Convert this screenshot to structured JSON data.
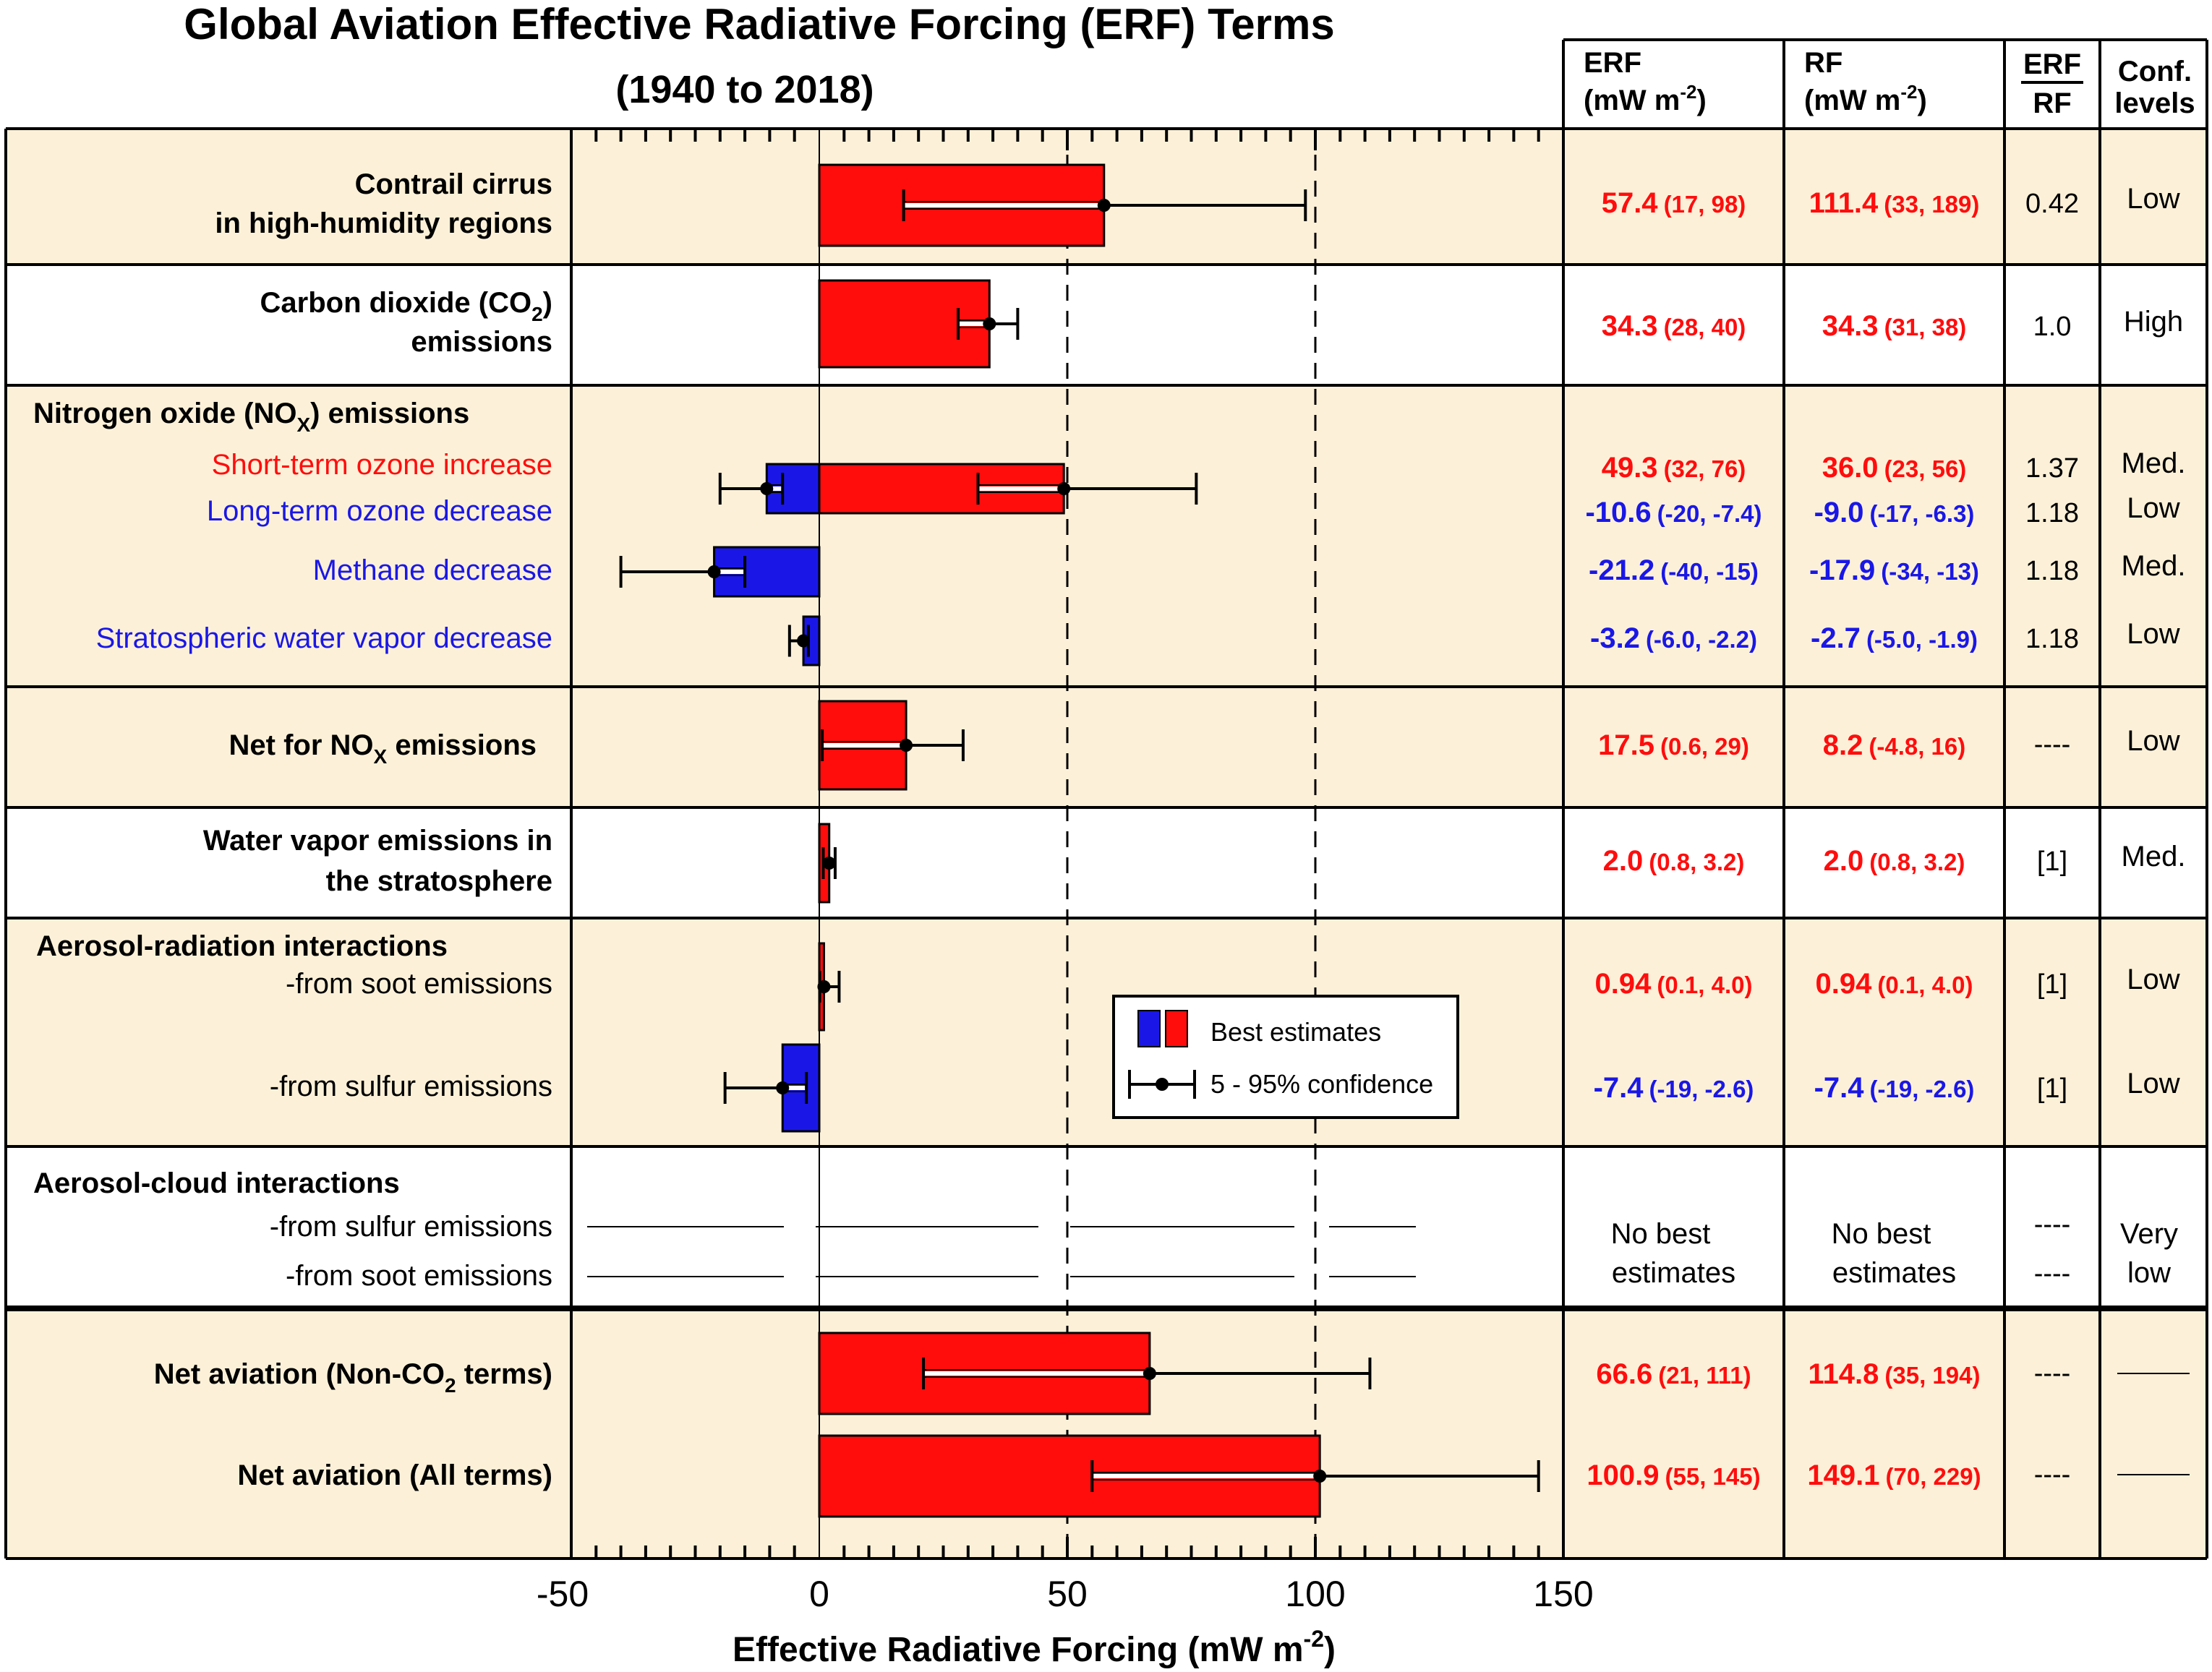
{
  "chart_data": {
    "type": "bar",
    "title": "Global Aviation Effective Radiative Forcing (ERF) Terms",
    "subtitle": "(1940 to 2018)",
    "xlabel": "Effective Radiative Forcing  (mW m",
    "xlabel_sup": "-2",
    "xlabel_close": ")",
    "xlim": [
      -50,
      150
    ],
    "x_ticks": [
      "-50",
      "0",
      "50",
      "100",
      "150"
    ],
    "dashed_reference_lines": [
      50,
      100
    ],
    "colors": {
      "positive": "#ff0d0d",
      "negative": "#1a17e6",
      "panel_shade": "#fcf1d8"
    },
    "table_headers": {
      "erf": "ERF",
      "erf_unit": "(mW m",
      "rf": "RF",
      "rf_unit": "(mW m",
      "unit_sup": "-2",
      "unit_close": ")",
      "ratio_top": "ERF",
      "ratio_bottom": "RF",
      "conf_top": "Conf.",
      "conf_bottom": "levels"
    },
    "legend": {
      "bars_label": "Best estimates",
      "error_label": "5 - 95% confidence"
    },
    "series": [
      {
        "name": "Contrail cirrus in high-humidity regions",
        "label_lines": [
          "Contrail cirrus",
          "in high-humidity regions"
        ],
        "value": 57.4,
        "low": 17,
        "high": 98,
        "erf": "57.4",
        "erf_range": "(17, 98)",
        "rf": "111.4",
        "rf_range": "(33, 189)",
        "ratio": "0.42",
        "conf": "Low"
      },
      {
        "name": "Carbon dioxide (CO2) emissions",
        "label_lines": [
          "Carbon dioxide (CO",
          "emissions"
        ],
        "label_sub": "2",
        "label_tail": ")",
        "value": 34.3,
        "low": 28,
        "high": 40,
        "erf": "34.3",
        "erf_range": "(28, 40)",
        "rf": "34.3",
        "rf_range": "(31, 38)",
        "ratio": "1.0",
        "conf": "High"
      },
      {
        "name": "Short-term ozone increase",
        "group": "Nitrogen oxide (NOx) emissions",
        "value": 49.3,
        "low": 32,
        "high": 76,
        "erf": "49.3",
        "erf_range": "(32, 76)",
        "rf": "36.0",
        "rf_range": "(23, 56)",
        "ratio": "1.37",
        "conf": "Med."
      },
      {
        "name": "Long-term ozone decrease",
        "group": "Nitrogen oxide (NOx) emissions",
        "value": -10.6,
        "low": -20,
        "high": -7.4,
        "erf": "-10.6",
        "erf_range": "(-20, -7.4)",
        "rf": "-9.0",
        "rf_range": "(-17, -6.3)",
        "ratio": "1.18",
        "conf": "Low"
      },
      {
        "name": "Methane decrease",
        "group": "Nitrogen oxide (NOx) emissions",
        "value": -21.2,
        "low": -40,
        "high": -15,
        "erf": "-21.2",
        "erf_range": "(-40, -15)",
        "rf": "-17.9",
        "rf_range": "(-34, -13)",
        "ratio": "1.18",
        "conf": "Med."
      },
      {
        "name": "Stratospheric water vapor decrease",
        "group": "Nitrogen oxide (NOx) emissions",
        "value": -3.2,
        "low": -6.0,
        "high": -2.2,
        "erf": "-3.2",
        "erf_range": "(-6.0, -2.2)",
        "rf": "-2.7",
        "rf_range": "(-5.0, -1.9)",
        "ratio": "1.18",
        "conf": "Low"
      },
      {
        "name": "Net for NOx emissions",
        "value": 17.5,
        "low": 0.6,
        "high": 29,
        "erf": "17.5",
        "erf_range": "(0.6, 29)",
        "rf": "8.2",
        "rf_range": "(-4.8, 16)",
        "ratio": "----",
        "conf": "Low"
      },
      {
        "name": "Water vapor emissions in the stratosphere",
        "label_lines": [
          "Water vapor emissions in",
          "the stratosphere"
        ],
        "value": 2.0,
        "low": 0.8,
        "high": 3.2,
        "erf": "2.0",
        "erf_range": "(0.8, 3.2)",
        "rf": "2.0",
        "rf_range": "(0.8, 3.2)",
        "ratio": "[1]",
        "conf": "Med."
      },
      {
        "name": "-from soot emissions",
        "group": "Aerosol-radiation interactions",
        "value": 0.94,
        "low": 0.1,
        "high": 4.0,
        "erf": "0.94",
        "erf_range": "(0.1, 4.0)",
        "rf": "0.94",
        "rf_range": "(0.1, 4.0)",
        "ratio": "[1]",
        "conf": "Low"
      },
      {
        "name": "-from sulfur emissions",
        "group": "Aerosol-radiation interactions",
        "value": -7.4,
        "low": -19,
        "high": -2.6,
        "erf": "-7.4",
        "erf_range": "(-19, -2.6)",
        "rf": "-7.4",
        "rf_range": "(-19, -2.6)",
        "ratio": "[1]",
        "conf": "Low"
      },
      {
        "name": "Net aviation (Non-CO2 terms)",
        "label_main": "Net aviation (Non-CO",
        "label_sub": "2",
        "label_tail": " terms)",
        "value": 66.6,
        "low": 21,
        "high": 111,
        "erf": "66.6",
        "erf_range": "(21, 111)",
        "rf": "114.8",
        "rf_range": "(35, 194)",
        "ratio": "----",
        "conf": ""
      },
      {
        "name": "Net aviation (All terms)",
        "value": 100.9,
        "low": 55,
        "high": 145,
        "erf": "100.9",
        "erf_range": "(55, 145)",
        "rf": "149.1",
        "rf_range": "(70, 229)",
        "ratio": "----",
        "conf": ""
      }
    ],
    "group_headings": {
      "nox_main": "Nitrogen oxide (NO",
      "nox_sub": "X",
      "nox_tail": ") emissions",
      "net_nox_main": "Net for NO",
      "net_nox_sub": "X",
      "net_nox_tail": " emissions",
      "aer_rad": "Aerosol-radiation interactions",
      "aer_cloud": "Aerosol-cloud interactions"
    },
    "aerosol_cloud": {
      "rows": [
        "-from sulfur emissions",
        "-from soot emissions"
      ],
      "erf_text": [
        "No best",
        "estimates"
      ],
      "rf_text": [
        "No best",
        "estimates"
      ],
      "ratio": [
        "----",
        "----"
      ],
      "conf": [
        "Very",
        "low"
      ]
    }
  }
}
